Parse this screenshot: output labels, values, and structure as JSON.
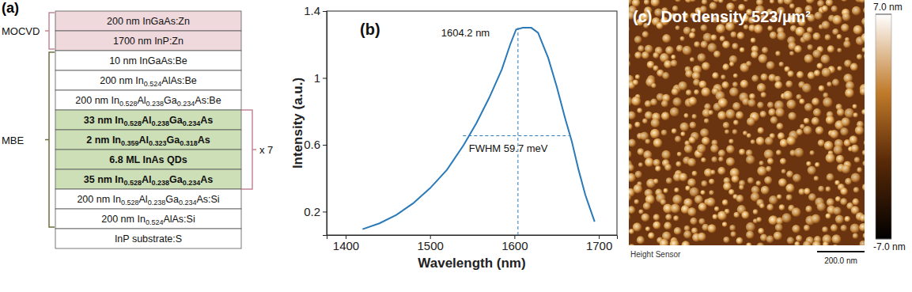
{
  "layer_stack": {
    "panel_label": "(a)",
    "groups": [
      {
        "label": "MOCVD",
        "color": "#efd9dd",
        "layers": [
          {
            "text": "200 nm InGaAs:Zn"
          },
          {
            "text": "1700 nm InP:Zn"
          }
        ]
      },
      {
        "label": "MBE",
        "layers": [
          {
            "text": "10 nm InGaAs:Be"
          },
          {
            "text": "200 nm In0.524AlAs:Be"
          },
          {
            "text": "200 nm In0.528Al0.238Ga0.234As:Be"
          },
          {
            "repeat": "x 7",
            "color": "#cddfb7",
            "layers": [
              {
                "text": "33 nm In0.528Al0.238Ga0.234As"
              },
              {
                "text": "2 nm In0.359Al0.323Ga0.318As"
              },
              {
                "text": "6.8 ML InAs QDs"
              },
              {
                "text": "35 nm In0.528Al0.238Ga0.234As"
              }
            ]
          },
          {
            "text": "200 nm In0.528Al0.238Ga0.234As:Si"
          },
          {
            "text": "200 nm In0.524AlAs:Si"
          }
        ]
      }
    ],
    "substrate": "InP substrate:S"
  },
  "chart_data": {
    "type": "line",
    "title": "(b)",
    "x_label": "Wavelength (nm)",
    "y_label": "Intensity (a.u.)",
    "x": [
      1420,
      1440,
      1460,
      1480,
      1500,
      1520,
      1540,
      1555,
      1570,
      1585,
      1595,
      1602,
      1610,
      1620,
      1628,
      1640,
      1650,
      1660,
      1668,
      1676,
      1684,
      1695
    ],
    "series": [
      {
        "color": "#2a7ab9",
        "values": [
          0.095,
          0.13,
          0.18,
          0.25,
          0.34,
          0.45,
          0.6,
          0.73,
          0.88,
          1.05,
          1.2,
          1.29,
          1.3,
          1.3,
          1.27,
          1.12,
          0.95,
          0.76,
          0.62,
          0.45,
          0.3,
          0.14
        ]
      }
    ],
    "xlim": [
      1377.5,
      1721.5
    ],
    "ylim": [
      0.06,
      1.4
    ],
    "xticks": [
      1400,
      1500,
      1600,
      1700
    ],
    "yticks": [
      0.2,
      0.6,
      1,
      1.4
    ],
    "annotations": [
      {
        "text": "1604.2 nm",
        "x": 1542,
        "y": 1.25,
        "line_x": [
          1604.2,
          1604.2
        ],
        "line_y": [
          0.06,
          1.3
        ],
        "line_style": "dashed"
      },
      {
        "text": "FWHM 59.7 meV",
        "x": 1546,
        "y": 0.555,
        "line_x": [
          1539,
          1665
        ],
        "line_y": [
          0.654,
          0.654
        ],
        "line_style": "dashed"
      }
    ]
  },
  "afm_image": {
    "title": "(c)  Dot density 523/µm²",
    "caption": "Height Sensor",
    "scale_bar": "200.0 nm",
    "color_bar": {
      "range": [
        -7,
        7
      ],
      "ticks": [
        {
          "value": 7,
          "label": "7.0 nm"
        },
        {
          "value": -7,
          "label": "-7.0 nm"
        }
      ]
    }
  }
}
